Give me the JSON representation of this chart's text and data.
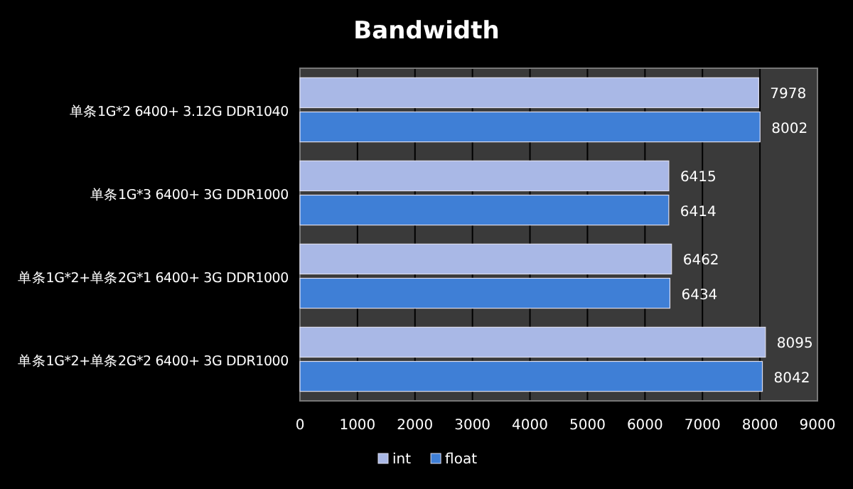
{
  "chart_data": {
    "type": "bar",
    "orientation": "horizontal",
    "title": "Bandwidth",
    "categories": [
      "单条1G*2 6400+ 3.12G DDR1040",
      "单条1G*3 6400+ 3G DDR1000",
      "单条1G*2+单条2G*1 6400+ 3G DDR1000",
      "单条1G*2+单条2G*2 6400+ 3G DDR1000"
    ],
    "series": [
      {
        "name": "int",
        "color": "#a9b8e6",
        "values": [
          7978,
          6415,
          6462,
          8095
        ]
      },
      {
        "name": "float",
        "color": "#3f7fd6",
        "values": [
          8002,
          6414,
          6434,
          8042
        ]
      }
    ],
    "xlim": [
      0,
      9000
    ],
    "xticks": [
      0,
      1000,
      2000,
      3000,
      4000,
      5000,
      6000,
      7000,
      8000,
      9000
    ],
    "grid": "x",
    "legend": "bottom",
    "data_labels": true
  }
}
